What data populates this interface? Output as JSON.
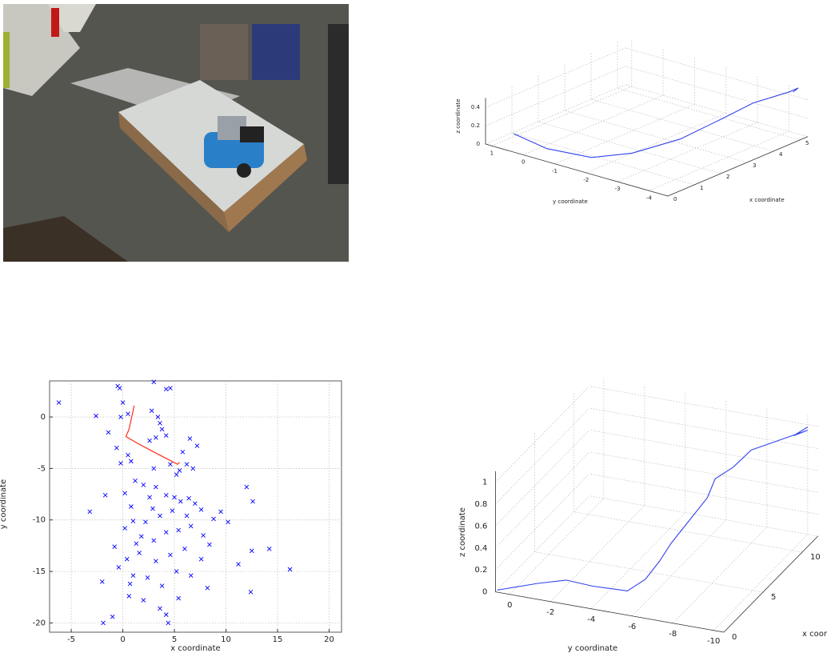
{
  "chart_data": [
    {
      "type": "line3d",
      "xlabel": "x coordinate",
      "ylabel": "y coordinate",
      "zlabel": "z coordinate",
      "xlim": [
        0,
        5.3
      ],
      "ylim": [
        -4.6,
        1.2
      ],
      "zlim": [
        0,
        0.5
      ],
      "xticks": [
        0,
        1,
        2,
        3,
        4,
        5
      ],
      "yticks": [
        1,
        0,
        -1,
        -2,
        -3,
        -4
      ],
      "zticks": [
        0,
        0.2,
        0.4
      ],
      "grid": true,
      "color": "#3344ee",
      "x": [
        0,
        0.3,
        0.8,
        1.5,
        2.5,
        3.5,
        4.3,
        5.2,
        5.3,
        5.1
      ],
      "y": [
        0.3,
        -0.5,
        -1.5,
        -2.2,
        -2.9,
        -3.4,
        -3.7,
        -4.1,
        -4.3,
        -4.3
      ],
      "z": [
        0.2,
        0.08,
        0.02,
        0.05,
        0.15,
        0.3,
        0.4,
        0.45,
        0.5,
        0.48
      ]
    },
    {
      "type": "scatter",
      "xlabel": "x coordinate",
      "ylabel": "y coordinate",
      "xlim": [
        -7.1,
        21.2
      ],
      "ylim": [
        -20.9,
        3.5
      ],
      "xticks": [
        -5,
        0,
        5,
        10,
        15,
        20
      ],
      "yticks": [
        0,
        -5,
        -10,
        -15,
        -20
      ],
      "grid": true,
      "series": [
        {
          "type": "scatter",
          "color": "#0000ff",
          "x": [
            -6.2,
            -2.6,
            -3.2,
            -1.7,
            -2,
            -1.9,
            -1,
            12,
            12.6,
            12.4,
            14.2,
            16.2,
            11.2,
            12.5,
            10.2,
            9.5,
            -0.8,
            -0.5,
            -0.3,
            0,
            -0.2,
            0.5,
            -1.4,
            -0.6,
            -0.2,
            0.5,
            3,
            4.2,
            4.6,
            2.8,
            3.4,
            3.8,
            3.2,
            4.2,
            2.6,
            3.6,
            6.5,
            7.2,
            5.8,
            6.2,
            5.5,
            4.6,
            5.2,
            6.8,
            3,
            0.8,
            0.2,
            0.8,
            1.2,
            2,
            3.2,
            2.6,
            4.2,
            5,
            5.6,
            6.4,
            7,
            7.6,
            6.2,
            4.8,
            3.6,
            2.2,
            1,
            0.2,
            1.8,
            3,
            4.2,
            5.4,
            6.6,
            7.8,
            8.4,
            6,
            4.6,
            3.2,
            1.6,
            0.4,
            -0.4,
            1,
            2.4,
            3.8,
            5.2,
            6.6,
            7.6,
            8.2,
            0.6,
            2,
            3.6,
            4.2,
            4.4,
            0.7,
            5.4,
            1.3,
            2.9,
            8.8
          ],
          "y": [
            1.4,
            0.1,
            -9.2,
            -7.6,
            -16,
            -20,
            -19.4,
            -6.8,
            -8.2,
            -17,
            -12.8,
            -14.8,
            -14.3,
            -13,
            -10.2,
            -9.2,
            -12.6,
            3,
            2.8,
            1.4,
            0,
            0.3,
            -1.5,
            -3,
            -4.5,
            -3.7,
            3.4,
            2.7,
            2.8,
            0.6,
            0,
            -1.2,
            -2,
            -1.8,
            -2.3,
            -0.6,
            -2.1,
            -2.8,
            -3.4,
            -4.6,
            -5.2,
            -4.6,
            -5.6,
            -5,
            -5,
            -4.3,
            -7.4,
            -8.7,
            -6.2,
            -6.6,
            -6.8,
            -7.8,
            -7.6,
            -7.8,
            -8.2,
            -7.9,
            -8.4,
            -9,
            -9.6,
            -9.1,
            -9.6,
            -10.2,
            -10.1,
            -10.8,
            -11.6,
            -12,
            -11.2,
            -11,
            -10.6,
            -11.5,
            -12.4,
            -12.8,
            -13.4,
            -14,
            -13.2,
            -13.8,
            -14.6,
            -15.4,
            -15.6,
            -16.4,
            -15,
            -15.4,
            -13.8,
            -16.6,
            -17.4,
            -17.8,
            -18.6,
            -19.2,
            -20,
            -16.2,
            -17.6,
            -12.3,
            -8.9,
            -9.9
          ]
        },
        {
          "type": "line",
          "color": "#ff2a1a",
          "x": [
            1.1,
            0.6,
            0.3,
            1.5,
            3,
            5.3,
            5.5
          ],
          "y": [
            1.1,
            -1.2,
            -1.9,
            -2.6,
            -3.4,
            -4.6,
            -4.4
          ]
        }
      ]
    },
    {
      "type": "line3d",
      "xlabel": "x coordinate",
      "ylabel": "y coordinate",
      "zlabel": "z coordinate",
      "xlim": [
        0,
        12
      ],
      "ylim": [
        -10.5,
        0.7
      ],
      "zlim": [
        0,
        1.1
      ],
      "xticks": [
        0,
        5,
        10
      ],
      "yticks": [
        0,
        -2,
        -4,
        -6,
        -8,
        -10
      ],
      "zticks": [
        0,
        0.2,
        0.4,
        0.6,
        0.8,
        1
      ],
      "grid": true,
      "color": "#3344ee",
      "x": [
        0,
        1,
        2,
        1.5,
        2,
        3,
        4,
        5,
        6,
        7,
        8,
        9,
        10,
        11,
        12,
        11.5,
        12
      ],
      "y": [
        0.6,
        -1,
        -2,
        -3.5,
        -5,
        -5.5,
        -5.8,
        -6,
        -6.5,
        -7,
        -7,
        -7.5,
        -8,
        -9,
        -10,
        -9.5,
        -10
      ],
      "z": [
        0.02,
        0.06,
        0.05,
        0.08,
        0.05,
        0.1,
        0.2,
        0.3,
        0.45,
        0.6,
        0.7,
        0.75,
        0.85,
        0.9,
        0.95,
        0.92,
        0.98
      ]
    }
  ]
}
